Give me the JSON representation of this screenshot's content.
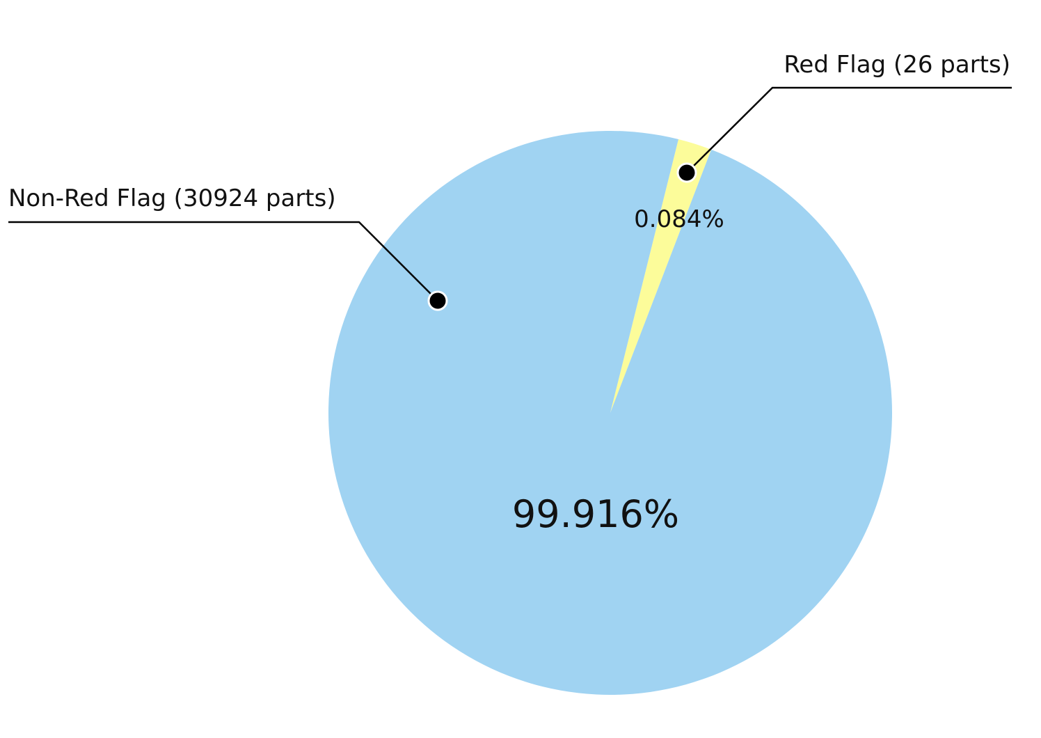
{
  "chart_data": {
    "type": "pie",
    "slices": [
      {
        "label": "Non-Red Flag",
        "callout": "Non-Red Flag (30924 parts)",
        "parts": 30924,
        "percent_label": "99.916%",
        "color": "#a0d3f2"
      },
      {
        "label": "Red Flag",
        "callout": "Red Flag (26 parts)",
        "parts": 26,
        "percent_label": "0.084%",
        "color": "#fcfc9a"
      }
    ],
    "start_angle_deg": 14,
    "direction": "clockwise",
    "legend": "none",
    "labels": "callouts with leader lines"
  }
}
